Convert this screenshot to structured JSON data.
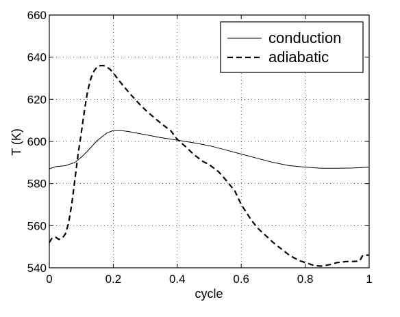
{
  "chart_data": {
    "type": "line",
    "xlabel": "cycle",
    "ylabel": "T (K)",
    "xlim": [
      0,
      1
    ],
    "ylim": [
      540,
      660
    ],
    "x_ticks": [
      0,
      0.2,
      0.4,
      0.6,
      0.8,
      1
    ],
    "x_tick_labels": [
      "0",
      "0.2",
      "0.4",
      "0.6",
      "0.8",
      "1"
    ],
    "y_ticks": [
      540,
      560,
      580,
      600,
      620,
      640,
      660
    ],
    "y_tick_labels": [
      "540",
      "560",
      "580",
      "600",
      "620",
      "640",
      "660"
    ],
    "grid": true,
    "legend_position": "top-right",
    "series": [
      {
        "name": "conduction",
        "style": "solid",
        "color": "#000000",
        "x": [
          0,
          0.02,
          0.05,
          0.08,
          0.1,
          0.12,
          0.15,
          0.18,
          0.2,
          0.22,
          0.25,
          0.3,
          0.35,
          0.4,
          0.45,
          0.5,
          0.55,
          0.6,
          0.65,
          0.7,
          0.75,
          0.8,
          0.85,
          0.9,
          0.95,
          1.0
        ],
        "y": [
          587,
          588,
          588.5,
          590,
          592.5,
          595.5,
          600.5,
          604,
          605.2,
          605.3,
          604.6,
          603.2,
          601.8,
          600.6,
          599.4,
          598,
          596,
          594,
          592,
          590,
          588.5,
          587.8,
          587.3,
          587.3,
          587.4,
          587.8
        ]
      },
      {
        "name": "adiabatic",
        "style": "dashed",
        "color": "#000000",
        "x": [
          0,
          0.01,
          0.02,
          0.03,
          0.04,
          0.05,
          0.06,
          0.07,
          0.08,
          0.09,
          0.1,
          0.11,
          0.12,
          0.13,
          0.14,
          0.15,
          0.16,
          0.17,
          0.18,
          0.19,
          0.2,
          0.22,
          0.25,
          0.28,
          0.3,
          0.33,
          0.35,
          0.38,
          0.4,
          0.43,
          0.45,
          0.48,
          0.5,
          0.53,
          0.55,
          0.58,
          0.6,
          0.63,
          0.65,
          0.7,
          0.75,
          0.78,
          0.8,
          0.83,
          0.85,
          0.88,
          0.9,
          0.93,
          0.95,
          0.97,
          0.98,
          1.0
        ],
        "y": [
          552,
          554.5,
          554.5,
          553.5,
          554,
          556,
          561,
          570,
          582,
          594,
          604,
          615,
          624,
          630,
          633.5,
          635.5,
          636,
          636,
          635.3,
          634.2,
          632.5,
          628.5,
          623,
          618,
          615,
          611,
          608.5,
          605,
          601,
          597,
          594,
          590.5,
          589,
          585.5,
          582,
          576.5,
          570,
          563,
          559,
          552,
          546,
          543.5,
          542.5,
          541,
          540.8,
          541.6,
          542.5,
          543,
          543,
          543.2,
          546,
          546
        ]
      }
    ]
  }
}
